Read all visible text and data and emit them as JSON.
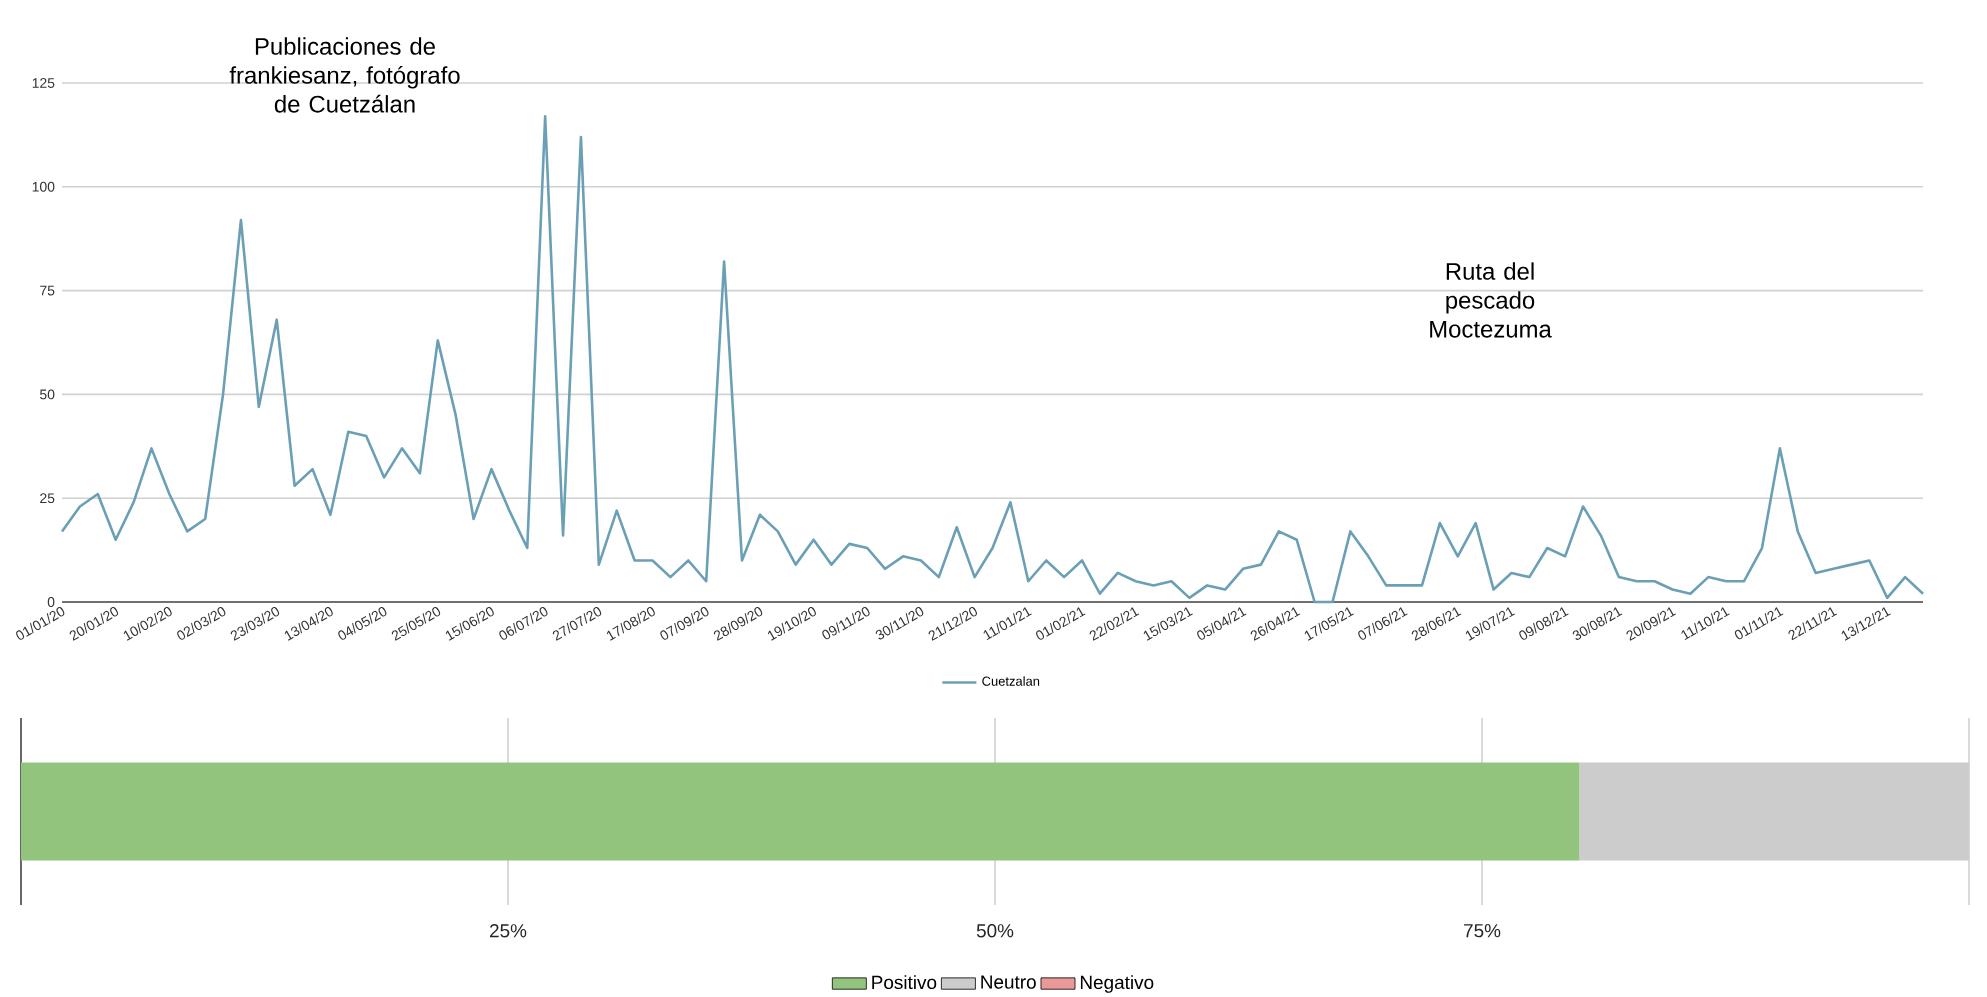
{
  "chart_data": [
    {
      "type": "line",
      "categories": [
        "01/01/20",
        null,
        null,
        "20/01/20",
        null,
        null,
        "10/02/20",
        null,
        null,
        "02/03/20",
        null,
        null,
        "23/03/20",
        null,
        null,
        "13/04/20",
        null,
        null,
        "04/05/20",
        null,
        null,
        "25/05/20",
        null,
        null,
        "15/06/20",
        null,
        null,
        "06/07/20",
        null,
        null,
        "27/07/20",
        null,
        null,
        "17/08/20",
        null,
        null,
        "07/09/20",
        null,
        null,
        "28/09/20",
        null,
        null,
        "19/10/20",
        null,
        null,
        "09/11/20",
        null,
        null,
        "30/11/20",
        null,
        null,
        "21/12/20",
        null,
        null,
        "11/01/21",
        null,
        null,
        "01/02/21",
        null,
        null,
        "22/02/21",
        null,
        null,
        "15/03/21",
        null,
        null,
        "05/04/21",
        null,
        null,
        "26/04/21",
        null,
        null,
        "17/05/21",
        null,
        null,
        "07/06/21",
        null,
        null,
        "28/06/21",
        null,
        null,
        "19/07/21",
        null,
        null,
        "09/08/21",
        null,
        null,
        "30/08/21",
        null,
        null,
        "20/09/21",
        null,
        null,
        "11/10/21",
        null,
        null,
        "01/11/21",
        null,
        null,
        "22/11/21",
        null,
        null,
        "13/12/21",
        null,
        null
      ],
      "series": [
        {
          "name": "Cuetzalan",
          "color": "#6a9fb5",
          "values": [
            17,
            23,
            26,
            15,
            24,
            37,
            26,
            17,
            20,
            50,
            92,
            47,
            68,
            28,
            32,
            21,
            41,
            40,
            30,
            37,
            31,
            63,
            45,
            20,
            32,
            22,
            13,
            117,
            16,
            112,
            9,
            22,
            10,
            10,
            6,
            10,
            5,
            82,
            10,
            21,
            17,
            9,
            15,
            9,
            14,
            13,
            8,
            11,
            10,
            6,
            18,
            6,
            13,
            24,
            5,
            10,
            6,
            10,
            2,
            7,
            5,
            4,
            5,
            1,
            4,
            3,
            8,
            9,
            17,
            15,
            0,
            0,
            17,
            11,
            4,
            4,
            4,
            19,
            11,
            19,
            3,
            7,
            6,
            13,
            11,
            23,
            16,
            6,
            5,
            5,
            3,
            2,
            6,
            5,
            5,
            13,
            37,
            17,
            7,
            8,
            9,
            10,
            1,
            6,
            2
          ]
        }
      ],
      "ylim": [
        0,
        125
      ],
      "yticks": [
        0,
        25,
        50,
        75,
        100,
        125
      ],
      "grid": "y",
      "legend": "bottom",
      "annotations": [
        "Publicaciones de frankiesanz, fotógrafo de Cuetzálan",
        "Ruta del pescado Moctezuma"
      ]
    },
    {
      "type": "bar",
      "orientation": "horizontal",
      "stacked": true,
      "categories": [
        null
      ],
      "series": [
        {
          "name": "Positivo",
          "color": "#93c47d",
          "values": [
            80
          ]
        },
        {
          "name": "Neutro",
          "color": "#cccccc",
          "values": [
            20
          ]
        },
        {
          "name": "Negativo",
          "color": "#ea9999",
          "values": [
            0
          ]
        }
      ],
      "xlim": [
        0,
        100
      ],
      "xticks": [
        {
          "value": 0,
          "label": null
        },
        {
          "value": 25,
          "label": "25%"
        },
        {
          "value": 50,
          "label": "50%"
        },
        {
          "value": 75,
          "label": "75%"
        },
        {
          "value": 100,
          "label": null
        }
      ],
      "grid": "x",
      "legend": "bottom"
    }
  ]
}
